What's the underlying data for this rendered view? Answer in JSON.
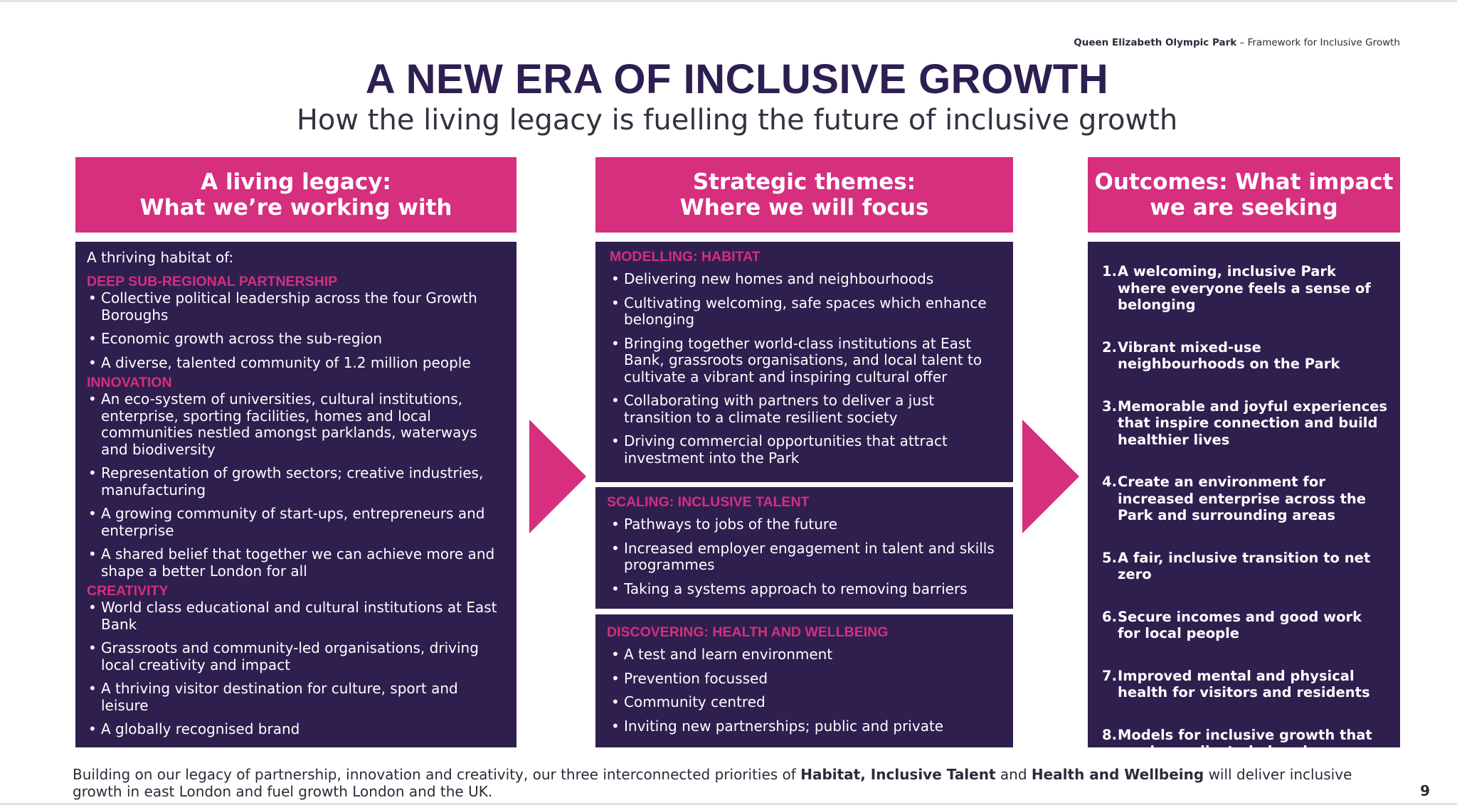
{
  "header": {
    "park_name": "Queen Elizabeth Olympic Park",
    "separator": " – ",
    "doc_name": "Framework for Inclusive Growth"
  },
  "title": "A NEW ERA OF INCLUSIVE GROWTH",
  "subtitle": "How the living legacy is fuelling the future of inclusive growth",
  "columns": {
    "legacy": {
      "heading_line1": "A living legacy:",
      "heading_line2": "What we’re working with"
    },
    "themes": {
      "heading_line1": "Strategic themes:",
      "heading_line2": "Where we will focus"
    },
    "outcomes": {
      "heading_line1": "Outcomes: What impact",
      "heading_line2": "we are seeking"
    }
  },
  "legacy": {
    "intro": "A thriving habitat of:",
    "sections": [
      {
        "title": "DEEP SUB-REGIONAL PARTNERSHIP",
        "items": [
          "Collective political leadership across the four Growth Boroughs",
          "Economic growth across the sub-region",
          "A diverse, talented community of 1.2 million people"
        ]
      },
      {
        "title": "INNOVATION",
        "items": [
          "An eco-system of universities, cultural institutions, enterprise, sporting facilities, homes and local communities nestled amongst parklands, waterways and biodiversity",
          "Representation of growth sectors; creative industries, manufacturing",
          "A growing community of start-ups, entrepreneurs and enterprise",
          "A shared belief that together we can achieve more and shape a better London for all"
        ]
      },
      {
        "title": "CREATIVITY",
        "items": [
          "World class educational and cultural institutions at East Bank",
          "Grassroots and community-led organisations, driving local creativity and impact",
          "A thriving visitor destination for culture, sport and leisure",
          "A globally recognised brand"
        ]
      }
    ]
  },
  "themes": [
    {
      "title": "MODELLING: HABITAT",
      "items": [
        "Delivering new homes and neighbourhoods",
        "Cultivating welcoming, safe spaces which enhance belonging",
        "Bringing together world-class institutions at East Bank, grassroots organisations, and local talent to cultivate a vibrant and inspiring cultural offer",
        "Collaborating with partners to deliver a just transition to a climate resilient society",
        "Driving commercial opportunities that attract investment into the Park"
      ]
    },
    {
      "title": "SCALING: INCLUSIVE TALENT",
      "items": [
        "Pathways to jobs of the future",
        "Increased employer engagement in talent and skills programmes",
        "Taking a systems approach to removing barriers"
      ]
    },
    {
      "title": "DISCOVERING: HEALTH AND WELLBEING",
      "items": [
        "A test and learn environment",
        "Prevention focussed",
        "Community centred",
        "Inviting new partnerships; public and private"
      ]
    }
  ],
  "outcomes": [
    {
      "num": "1.",
      "text": "A welcoming, inclusive Park where everyone feels a sense of belonging"
    },
    {
      "num": "2.",
      "text": "Vibrant mixed-use neighbourhoods on the Park"
    },
    {
      "num": "3.",
      "text": "Memorable and joyful experiences that inspire connection and build healthier lives"
    },
    {
      "num": "4.",
      "text": "Create an environment for increased enterprise across the Park and surrounding areas"
    },
    {
      "num": "5.",
      "text": "A fair, inclusive transition to net zero"
    },
    {
      "num": "6.",
      "text": "Secure incomes and good work for local people"
    },
    {
      "num": "7.",
      "text": "Improved mental and physical health for visitors and residents"
    },
    {
      "num": "8.",
      "text": "Models for inclusive growth that can be replicated elsewhere"
    }
  ],
  "footer": {
    "part1": "Building on our legacy of partnership, innovation and creativity, our three interconnected priorities of ",
    "habitat": "Habitat",
    "comma": ", ",
    "talent": "Inclusive Talent",
    "and": " and ",
    "health": "Health and Wellbeing",
    "part2": " will deliver inclusive growth in east London and fuel growth London and the UK."
  },
  "page_number": "9",
  "colors": {
    "navy": "#2e1f4f",
    "magenta": "#d52f7e",
    "title": "#2d1f52"
  }
}
